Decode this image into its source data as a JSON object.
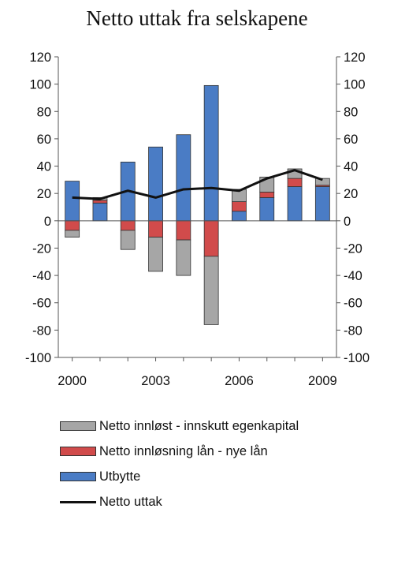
{
  "chart_data": {
    "type": "bar",
    "title": "Netto uttak fra selskapene",
    "x": [
      2000,
      2001,
      2002,
      2003,
      2004,
      2005,
      2006,
      2007,
      2008,
      2009
    ],
    "xticks": [
      "2000",
      "2003",
      "2006",
      "2009"
    ],
    "ylim": [
      -100,
      120
    ],
    "yticks": [
      120,
      100,
      80,
      60,
      40,
      20,
      0,
      -20,
      -40,
      -60,
      -80,
      -100
    ],
    "stacked": true,
    "series": [
      {
        "name": "Utbytte",
        "type": "bar",
        "color": "#4a7cc5",
        "values": [
          29,
          13,
          43,
          54,
          63,
          99,
          7,
          17,
          25,
          25
        ]
      },
      {
        "name": "Netto innløsning lån - nye lån",
        "type": "bar",
        "color": "#d14b4b",
        "values": [
          -7,
          2,
          -7,
          -12,
          -14,
          -26,
          7,
          4,
          6,
          1
        ]
      },
      {
        "name": "Netto innløst - innskutt egenkapital",
        "type": "bar",
        "color": "#a6a6a6",
        "values": [
          -5,
          2,
          -14,
          -25,
          -26,
          -50,
          9,
          11,
          7,
          5
        ]
      },
      {
        "name": "Netto uttak",
        "type": "line",
        "color": "#111111",
        "values": [
          17,
          16,
          22,
          17,
          23,
          24,
          22,
          31,
          37,
          30
        ]
      }
    ]
  },
  "legend": [
    {
      "label": "Netto innløst - innskutt egenkapital",
      "color": "#a6a6a6",
      "kind": "bar"
    },
    {
      "label": "Netto innløsning lån - nye lån",
      "color": "#d14b4b",
      "kind": "bar"
    },
    {
      "label": "Utbytte",
      "color": "#4a7cc5",
      "kind": "bar"
    },
    {
      "label": "Netto uttak",
      "color": "#111111",
      "kind": "line"
    }
  ]
}
